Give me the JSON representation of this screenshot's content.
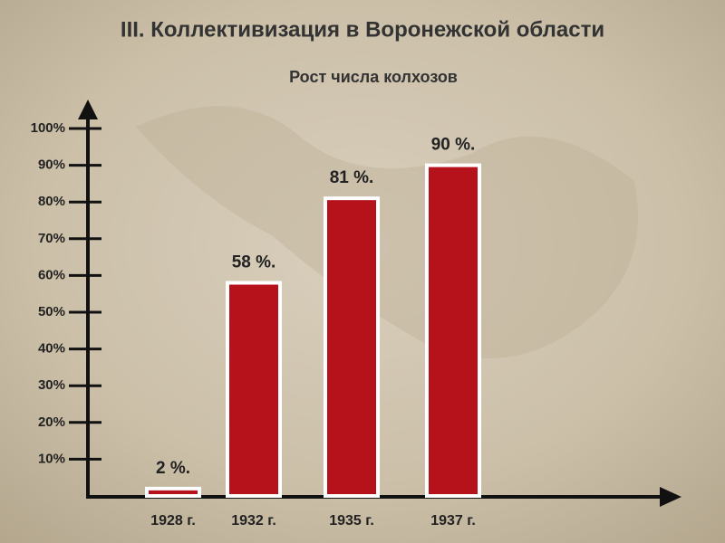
{
  "chart_data": {
    "type": "bar",
    "title": "III. Коллективизация в Воронежской области",
    "subtitle": "Рост числа колхозов",
    "categories": [
      "1928 г.",
      "1932 г.",
      "1935 г.",
      "1937 г."
    ],
    "values": [
      2,
      58,
      81,
      90
    ],
    "value_labels": [
      "2 %.",
      "58 %.",
      "81 %.",
      "90 %."
    ],
    "color": "#b5121b",
    "ylim": [
      0,
      100
    ],
    "yticks": [
      {
        "value": 10,
        "label": "10%"
      },
      {
        "value": 20,
        "label": "20%"
      },
      {
        "value": 30,
        "label": "30%"
      },
      {
        "value": 40,
        "label": "40%"
      },
      {
        "value": 50,
        "label": "50%"
      },
      {
        "value": 60,
        "label": "60%"
      },
      {
        "value": 70,
        "label": "70%"
      },
      {
        "value": 80,
        "label": "80%"
      },
      {
        "value": 90,
        "label": "90%"
      },
      {
        "value": 100,
        "label": "100%"
      }
    ]
  }
}
